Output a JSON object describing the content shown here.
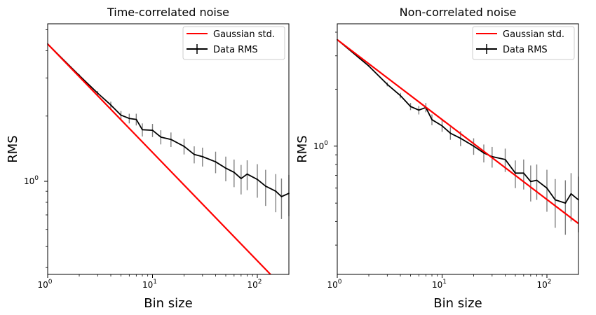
{
  "chart_data": [
    {
      "type": "line",
      "title": "Time-correlated noise",
      "xlabel": "Bin size",
      "ylabel": "RMS",
      "x_scale": "log",
      "y_scale": "log",
      "xlim": [
        1,
        200
      ],
      "ylim": [
        0.372,
        5.33
      ],
      "x_ticks": [
        {
          "value": 1,
          "base": "10",
          "exp": "0"
        },
        {
          "value": 10,
          "base": "10",
          "exp": "1"
        },
        {
          "value": 100,
          "base": "10",
          "exp": "2"
        }
      ],
      "y_ticks": [
        {
          "value": 1,
          "base": "10",
          "exp": "0"
        }
      ],
      "legend": {
        "position": "upper right",
        "entries": [
          "Gaussian std.",
          "Data RMS"
        ]
      },
      "series": [
        {
          "name": "Gaussian std.",
          "color": "#ff0000",
          "x": [
            1,
            200
          ],
          "y": [
            4.3,
            0.304
          ]
        },
        {
          "name": "Data RMS",
          "color": "#000000",
          "errorbar_color": "#808080",
          "x": [
            1,
            2,
            3,
            4,
            5,
            6,
            7,
            8,
            10,
            12,
            15,
            20,
            25,
            30,
            40,
            50,
            60,
            70,
            80,
            100,
            120,
            150,
            170,
            200
          ],
          "y": [
            4.3,
            3.08,
            2.55,
            2.25,
            2.02,
            1.95,
            1.93,
            1.73,
            1.72,
            1.6,
            1.56,
            1.45,
            1.33,
            1.3,
            1.23,
            1.15,
            1.1,
            1.03,
            1.08,
            1.02,
            0.95,
            0.9,
            0.85,
            0.88
          ],
          "yerr": [
            0,
            0.04,
            0.06,
            0.08,
            0.09,
            0.1,
            0.12,
            0.12,
            0.12,
            0.12,
            0.12,
            0.12,
            0.12,
            0.13,
            0.14,
            0.15,
            0.16,
            0.16,
            0.17,
            0.18,
            0.18,
            0.18,
            0.18,
            0.19
          ]
        }
      ]
    },
    {
      "type": "line",
      "title": "Non-correlated noise",
      "xlabel": "Bin size",
      "ylabel": "RMS",
      "x_scale": "log",
      "y_scale": "log",
      "xlim": [
        1,
        200
      ],
      "ylim": [
        0.21,
        4.43
      ],
      "x_ticks": [
        {
          "value": 1,
          "base": "10",
          "exp": "0"
        },
        {
          "value": 10,
          "base": "10",
          "exp": "1"
        },
        {
          "value": 100,
          "base": "10",
          "exp": "2"
        }
      ],
      "y_ticks": [
        {
          "value": 1,
          "base": "10",
          "exp": "0"
        }
      ],
      "legend": {
        "position": "upper right",
        "entries": [
          "Gaussian std.",
          "Data RMS"
        ]
      },
      "series": [
        {
          "name": "Gaussian std.",
          "color": "#ff0000",
          "x": [
            1,
            200
          ],
          "y": [
            3.65,
            0.39
          ]
        },
        {
          "name": "Data RMS",
          "color": "#000000",
          "errorbar_color": "#808080",
          "x": [
            1,
            2,
            3,
            4,
            5,
            6,
            7,
            8,
            10,
            12,
            15,
            20,
            25,
            30,
            40,
            50,
            60,
            70,
            80,
            100,
            120,
            150,
            170,
            200
          ],
          "y": [
            3.65,
            2.65,
            2.12,
            1.85,
            1.62,
            1.55,
            1.6,
            1.38,
            1.28,
            1.17,
            1.1,
            1.0,
            0.92,
            0.88,
            0.85,
            0.72,
            0.72,
            0.65,
            0.66,
            0.6,
            0.52,
            0.5,
            0.56,
            0.52
          ],
          "yerr": [
            0,
            0.03,
            0.05,
            0.06,
            0.07,
            0.08,
            0.09,
            0.09,
            0.09,
            0.09,
            0.1,
            0.1,
            0.1,
            0.11,
            0.12,
            0.12,
            0.13,
            0.14,
            0.14,
            0.15,
            0.15,
            0.16,
            0.16,
            0.17
          ]
        }
      ]
    }
  ]
}
